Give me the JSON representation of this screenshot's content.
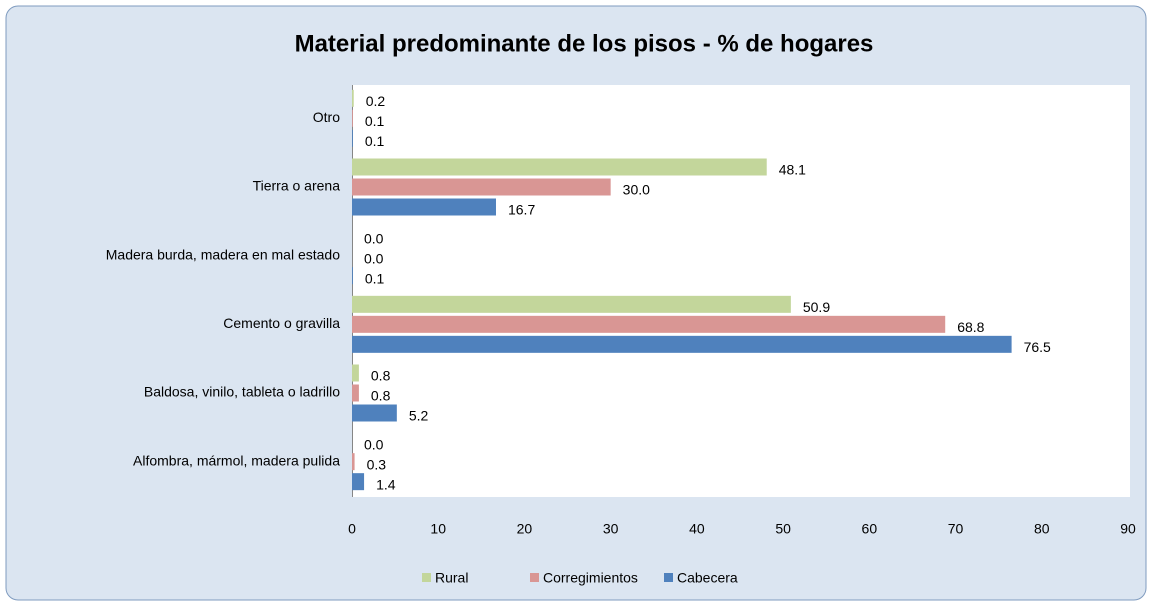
{
  "chart_data": {
    "type": "bar",
    "orientation": "horizontal",
    "title": "Material predominante de los pisos -  % de hogares",
    "categories": [
      "Otro",
      "Tierra o arena",
      "Madera burda, madera en mal estado",
      "Cemento o gravilla",
      "Baldosa, vinilo, tableta o ladrillo",
      "Alfombra, mármol, madera pulida"
    ],
    "series": [
      {
        "name": "Rural",
        "color": "#c3d69b",
        "values": [
          0.2,
          48.1,
          0.0,
          50.9,
          0.8,
          0.0
        ],
        "value_labels": [
          "0.2",
          "48.1",
          "0.0",
          "50.9",
          "0.8",
          "0.0"
        ]
      },
      {
        "name": "Corregimientos",
        "color": "#d99694",
        "values": [
          0.1,
          30.0,
          0.0,
          68.8,
          0.8,
          0.3
        ],
        "value_labels": [
          "0.1",
          "30.0",
          "0.0",
          "68.8",
          "0.8",
          "0.3"
        ]
      },
      {
        "name": "Cabecera",
        "color": "#4f81bd",
        "values": [
          0.1,
          16.7,
          0.1,
          76.5,
          5.2,
          1.4
        ],
        "value_labels": [
          "0.1",
          "16.7",
          "0.1",
          "76.5",
          "5.2",
          "1.4"
        ]
      }
    ],
    "xlim": [
      0,
      90
    ],
    "xticks": [
      0,
      10,
      20,
      30,
      40,
      50,
      60,
      70,
      80,
      90
    ],
    "legend": "bottom"
  }
}
